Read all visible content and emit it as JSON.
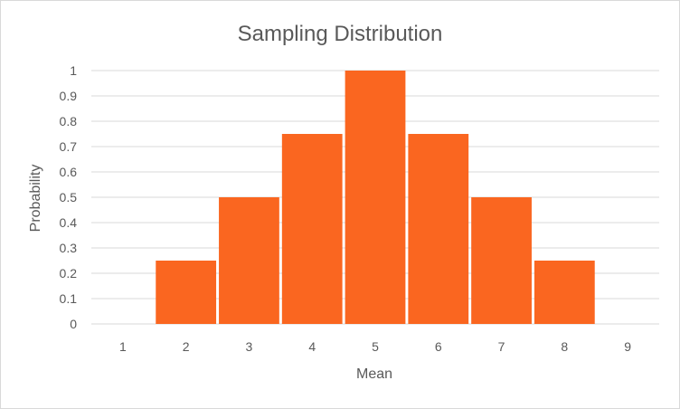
{
  "chart_data": {
    "type": "bar",
    "title": "Sampling Distribution",
    "xlabel": "Mean",
    "ylabel": "Probability",
    "categories": [
      "1",
      "2",
      "3",
      "4",
      "5",
      "6",
      "7",
      "8",
      "9"
    ],
    "values": [
      0,
      0.25,
      0.5,
      0.75,
      1,
      0.75,
      0.5,
      0.25,
      0
    ],
    "ylim": [
      0,
      1
    ],
    "yticks": [
      "0",
      "0.1",
      "0.2",
      "0.3",
      "0.4",
      "0.5",
      "0.6",
      "0.7",
      "0.8",
      "0.9",
      "1"
    ],
    "grid": true,
    "legend": "none",
    "bar_color": "#FA6620"
  }
}
